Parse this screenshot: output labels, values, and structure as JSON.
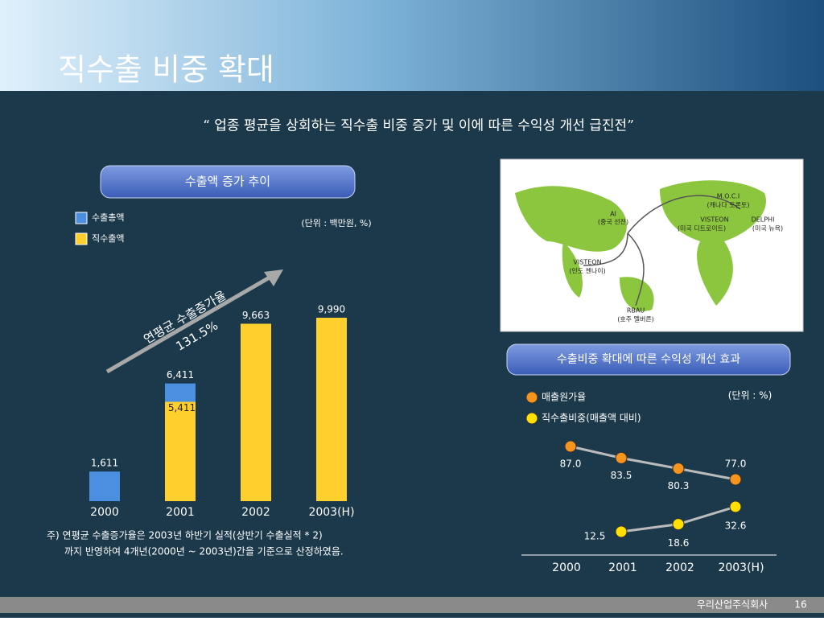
{
  "title": "직수출 비중 확대",
  "subtitle": "“ 업종 평균을 상회하는 직수출 비중 증가 및 이에 따른 수익성 개선 급진전”",
  "chart_data": [
    {
      "type": "bar",
      "title": "수출액 증가 추이",
      "unit_note": "(단위 : 백만원, %)",
      "categories": [
        "2000",
        "2001",
        "2002",
        "2003(H)"
      ],
      "series": [
        {
          "name": "수출총액",
          "color": "#4a8fe0",
          "values": [
            1611,
            6411,
            9663,
            9990
          ],
          "value_labels": [
            "1,611",
            "6,411",
            "9,663",
            "9,990"
          ]
        },
        {
          "name": "직수출액",
          "color": "#ffcf2e",
          "values": [
            null,
            5411,
            9663,
            9990
          ],
          "value_labels": [
            null,
            "5,411",
            null,
            null
          ]
        }
      ],
      "annotations": [
        "연평균 수출증가율",
        "131.5%"
      ],
      "notes": [
        "주) 연평균 수출증가율은 2003년 하반기 실적(상반기 수출실적 * 2)",
        "까지 반영하여 4개년(2000년 ~ 2003년)간을 기준으로 산정하였음."
      ]
    },
    {
      "type": "line",
      "title": "수출비중 확대에 따른 수익성 개선 효과",
      "unit_note": "(단위 : %)",
      "categories": [
        "2000",
        "2001",
        "2002",
        "2003(H)"
      ],
      "series": [
        {
          "name": "매출원가율",
          "color": "#f7941d",
          "values": [
            87.0,
            83.5,
            80.3,
            77.0
          ],
          "value_labels": [
            "87.0",
            "83.5",
            "80.3",
            "77.0"
          ]
        },
        {
          "name": "직수출비중(매출액 대비)",
          "color": "#ffe000",
          "values": [
            null,
            12.5,
            18.6,
            32.6
          ],
          "value_labels": [
            null,
            "12.5",
            "18.6",
            "32.6"
          ]
        }
      ]
    }
  ],
  "map_labels": [
    "M.O.C.I",
    "(캐나다 토론토)",
    "AI",
    "(중국 선전)",
    "VISTEON",
    "(미국 디트로이트)",
    "DELPHI",
    "(미국 뉴욕)",
    "VISTEON",
    "(인도 첸나이)",
    "RBAU",
    "(호주 멜버른)"
  ],
  "footer": {
    "company": "우리산업주식회사",
    "page": "16"
  }
}
